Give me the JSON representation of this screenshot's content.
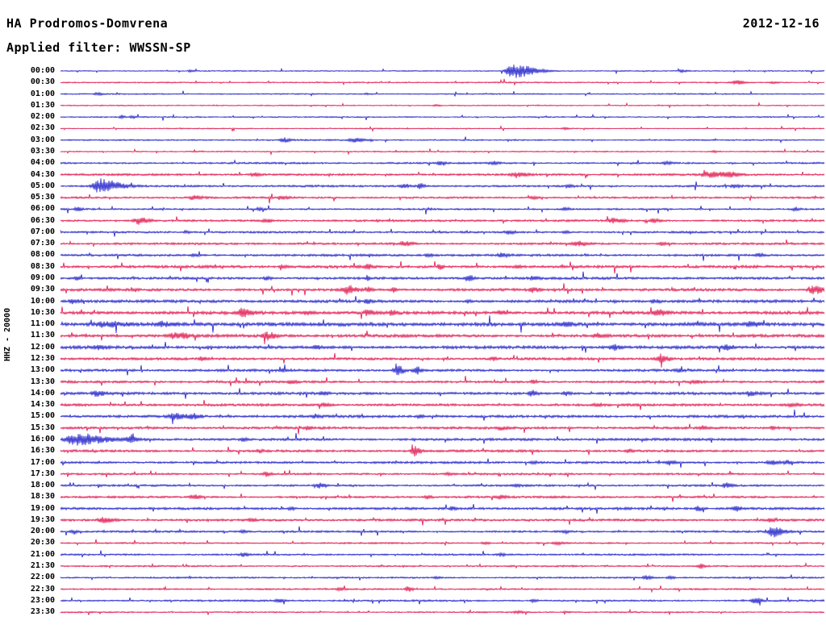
{
  "header": {
    "station": "HA Prodromos-Domvrena",
    "date": "2012-12-16",
    "filter_label": "Applied filter: WWSSN-SP"
  },
  "chart_data": {
    "type": "line",
    "subtype": "helicorder-seismogram-dayplot",
    "title": "HA Prodromos-Domvrena",
    "date": "2012-12-16",
    "filter": "WWSSN-SP",
    "ylabel": "HHZ - 20000",
    "row_interval_minutes": 30,
    "time_range": [
      "00:00",
      "23:30"
    ],
    "grid": false,
    "legend": false,
    "colors": {
      "blue": "#1a1ac9",
      "red": "#e0114a",
      "text": "#000000",
      "background": "#ffffff"
    },
    "events_schema": [
      "x_fraction_of_row",
      "amplitude_px",
      "width_px",
      "tail_factor_optional"
    ],
    "rows": [
      {
        "label": "00:00",
        "color": "blue",
        "noise": 0.6,
        "events": [
          [
            0.591,
            9,
            8,
            4
          ],
          [
            0.813,
            1.5,
            4
          ],
          [
            0.17,
            1.2,
            3
          ]
        ]
      },
      {
        "label": "00:30",
        "color": "red",
        "noise": 0.7,
        "events": [
          [
            0.884,
            2.5,
            5
          ],
          [
            0.932,
            1.5,
            3
          ]
        ]
      },
      {
        "label": "01:00",
        "color": "blue",
        "noise": 0.7,
        "events": [
          [
            0.047,
            2,
            3
          ],
          [
            0.4,
            1,
            3
          ]
        ]
      },
      {
        "label": "01:30",
        "color": "red",
        "noise": 0.6,
        "events": [
          [
            0.491,
            1,
            3
          ]
        ]
      },
      {
        "label": "02:00",
        "color": "blue",
        "noise": 0.7,
        "events": [
          [
            0.079,
            2.2,
            2
          ],
          [
            0.093,
            1.8,
            2
          ]
        ]
      },
      {
        "label": "02:30",
        "color": "red",
        "noise": 0.6,
        "events": [
          [
            0.66,
            1.2,
            3
          ]
        ]
      },
      {
        "label": "03:00",
        "color": "blue",
        "noise": 0.8,
        "events": [
          [
            0.292,
            3,
            4
          ],
          [
            0.383,
            2.5,
            7
          ]
        ]
      },
      {
        "label": "03:30",
        "color": "red",
        "noise": 0.7,
        "events": [
          [
            0.855,
            1.2,
            3
          ]
        ]
      },
      {
        "label": "04:00",
        "color": "blue",
        "noise": 1.0,
        "events": [
          [
            0.496,
            2.2,
            3
          ],
          [
            0.565,
            2,
            4
          ],
          [
            0.792,
            2,
            4
          ]
        ]
      },
      {
        "label": "04:30",
        "color": "red",
        "noise": 1.2,
        "events": [
          [
            0.253,
            2,
            4
          ],
          [
            0.597,
            2.5,
            6
          ],
          [
            0.85,
            3.5,
            10
          ],
          [
            0.876,
            3,
            5
          ]
        ]
      },
      {
        "label": "05:00",
        "color": "blue",
        "noise": 1.1,
        "events": [
          [
            0.05,
            9,
            7,
            4
          ],
          [
            0.449,
            3,
            4
          ],
          [
            0.47,
            3.5,
            3
          ],
          [
            0.665,
            2.2,
            3
          ],
          [
            0.882,
            2,
            4
          ]
        ]
      },
      {
        "label": "05:30",
        "color": "red",
        "noise": 1.1,
        "events": [
          [
            0.174,
            2.8,
            5
          ],
          [
            0.29,
            2,
            4
          ],
          [
            0.618,
            1.8,
            4
          ]
        ]
      },
      {
        "label": "06:00",
        "color": "blue",
        "noise": 1.0,
        "events": [
          [
            0.021,
            2.5,
            3
          ],
          [
            0.259,
            1.8,
            3
          ],
          [
            0.66,
            2,
            3
          ],
          [
            0.961,
            2,
            3
          ]
        ]
      },
      {
        "label": "06:30",
        "color": "red",
        "noise": 1.2,
        "events": [
          [
            0.102,
            4.5,
            6
          ],
          [
            0.269,
            2,
            4
          ],
          [
            0.723,
            3.5,
            6
          ],
          [
            0.776,
            2.5,
            4
          ]
        ]
      },
      {
        "label": "07:00",
        "color": "blue",
        "noise": 1.1,
        "events": [
          [
            0.164,
            1.5,
            3
          ],
          [
            0.586,
            2,
            4
          ],
          [
            0.66,
            1.8,
            3
          ]
        ]
      },
      {
        "label": "07:30",
        "color": "red",
        "noise": 1.2,
        "events": [
          [
            0.449,
            2.8,
            5
          ],
          [
            0.676,
            3,
            6
          ],
          [
            0.787,
            2.2,
            4
          ]
        ]
      },
      {
        "label": "08:00",
        "color": "blue",
        "noise": 1.3,
        "events": [
          [
            0.174,
            2,
            3
          ],
          [
            0.48,
            2,
            3
          ],
          [
            0.576,
            2.2,
            4
          ],
          [
            0.913,
            2,
            3
          ]
        ]
      },
      {
        "label": "08:30",
        "color": "red",
        "noise": 1.5,
        "events": [
          [
            0.29,
            2,
            3
          ],
          [
            0.401,
            5,
            2
          ],
          [
            0.496,
            5,
            2
          ],
          [
            0.597,
            2,
            3
          ]
        ]
      },
      {
        "label": "09:00",
        "color": "blue",
        "noise": 1.4,
        "events": [
          [
            0.021,
            2,
            3
          ],
          [
            0.269,
            2.2,
            3
          ],
          [
            0.401,
            3,
            2
          ],
          [
            0.533,
            3.5,
            4
          ],
          [
            0.618,
            2,
            3
          ]
        ]
      },
      {
        "label": "09:30",
        "color": "red",
        "noise": 1.5,
        "events": [
          [
            0.375,
            5,
            6
          ],
          [
            0.403,
            4,
            2
          ],
          [
            0.435,
            3.5,
            2
          ],
          [
            0.618,
            2.5,
            4
          ],
          [
            0.985,
            5.5,
            6
          ]
        ]
      },
      {
        "label": "10:00",
        "color": "blue",
        "noise": 1.6,
        "events": [
          [
            0.016,
            2.5,
            4
          ],
          [
            0.401,
            2.5,
            3
          ],
          [
            0.533,
            2,
            3
          ],
          [
            0.776,
            2.2,
            4
          ]
        ]
      },
      {
        "label": "10:30",
        "color": "red",
        "noise": 1.8,
        "events": [
          [
            0.238,
            5,
            6
          ],
          [
            0.322,
            2.5,
            4
          ],
          [
            0.401,
            3.5,
            4
          ],
          [
            0.433,
            3,
            3
          ],
          [
            0.576,
            2.5,
            4
          ],
          [
            0.781,
            3,
            6
          ]
        ]
      },
      {
        "label": "11:00",
        "color": "blue",
        "noise": 2.1,
        "events": [
          [
            0.058,
            3,
            10
          ],
          [
            0.132,
            2.5,
            6
          ],
          [
            0.66,
            2.5,
            5
          ],
          [
            0.903,
            2.5,
            5
          ]
        ]
      },
      {
        "label": "11:30",
        "color": "red",
        "noise": 1.7,
        "events": [
          [
            0.148,
            3.5,
            5
          ],
          [
            0.162,
            3,
            3
          ],
          [
            0.269,
            4.5,
            5
          ],
          [
            0.702,
            2.5,
            4
          ]
        ]
      },
      {
        "label": "12:00",
        "color": "blue",
        "noise": 1.7,
        "events": [
          [
            0.047,
            2.5,
            6
          ],
          [
            0.333,
            2.2,
            3
          ],
          [
            0.723,
            3,
            4
          ],
          [
            0.871,
            3.5,
            4
          ]
        ]
      },
      {
        "label": "12:30",
        "color": "red",
        "noise": 1.4,
        "events": [
          [
            0.185,
            2,
            3
          ],
          [
            0.565,
            2,
            3
          ],
          [
            0.785,
            5.5,
            5
          ]
        ]
      },
      {
        "label": "13:00",
        "color": "blue",
        "noise": 1.4,
        "events": [
          [
            0.29,
            2,
            3
          ],
          [
            0.44,
            6.5,
            4
          ],
          [
            0.465,
            5.5,
            3
          ],
          [
            0.808,
            2,
            3
          ]
        ]
      },
      {
        "label": "13:30",
        "color": "red",
        "noise": 1.3,
        "events": [
          [
            0.301,
            2.2,
            3
          ],
          [
            0.618,
            2.2,
            3
          ],
          [
            0.831,
            2,
            3
          ]
        ]
      },
      {
        "label": "14:00",
        "color": "blue",
        "noise": 1.5,
        "events": [
          [
            0.047,
            3,
            5
          ],
          [
            0.343,
            2.2,
            3
          ],
          [
            0.616,
            3.5,
            3
          ],
          [
            0.66,
            2.5,
            3
          ],
          [
            0.903,
            2.8,
            4
          ]
        ]
      },
      {
        "label": "14:30",
        "color": "red",
        "noise": 1.4,
        "events": [
          [
            0.343,
            2.8,
            4
          ],
          [
            0.702,
            2.2,
            3
          ],
          [
            0.956,
            2.8,
            4
          ]
        ]
      },
      {
        "label": "15:00",
        "color": "blue",
        "noise": 1.5,
        "events": [
          [
            0.148,
            4,
            8
          ],
          [
            0.174,
            3.5,
            4
          ],
          [
            0.333,
            2.2,
            3
          ],
          [
            0.47,
            2,
            3
          ]
        ]
      },
      {
        "label": "15:30",
        "color": "red",
        "noise": 1.4,
        "events": [
          [
            0.322,
            2,
            3
          ],
          [
            0.576,
            2,
            3
          ],
          [
            0.839,
            2.2,
            3
          ],
          [
            0.932,
            2,
            3
          ]
        ]
      },
      {
        "label": "16:00",
        "color": "blue",
        "noise": 1.4,
        "events": [
          [
            0.018,
            7,
            10,
            4
          ],
          [
            0.09,
            3,
            5
          ],
          [
            0.238,
            1.8,
            3
          ]
        ]
      },
      {
        "label": "16:30",
        "color": "red",
        "noise": 1.3,
        "events": [
          [
            0.259,
            2,
            3
          ],
          [
            0.463,
            6,
            4
          ],
          [
            0.744,
            2,
            3
          ]
        ]
      },
      {
        "label": "17:00",
        "color": "blue",
        "noise": 1.3,
        "events": [
          [
            0.618,
            2,
            3
          ],
          [
            0.797,
            2.8,
            4
          ],
          [
            0.929,
            3,
            5
          ],
          [
            0.95,
            2.5,
            3
          ]
        ]
      },
      {
        "label": "17:30",
        "color": "red",
        "noise": 1.1,
        "events": [
          [
            0.269,
            3.5,
            3
          ],
          [
            0.507,
            1.5,
            3
          ]
        ]
      },
      {
        "label": "18:00",
        "color": "blue",
        "noise": 1.1,
        "events": [
          [
            0.338,
            3,
            4
          ],
          [
            0.597,
            1.8,
            3
          ],
          [
            0.871,
            3.2,
            4
          ]
        ]
      },
      {
        "label": "18:30",
        "color": "red",
        "noise": 1.2,
        "events": [
          [
            0.174,
            3,
            4
          ],
          [
            0.48,
            2,
            3
          ],
          [
            0.576,
            2,
            3
          ]
        ]
      },
      {
        "label": "19:00",
        "color": "blue",
        "noise": 1.4,
        "events": [
          [
            0.301,
            2.2,
            3
          ],
          [
            0.512,
            2.2,
            3
          ],
          [
            0.834,
            3.2,
            3
          ],
          [
            0.884,
            3.5,
            3
          ]
        ]
      },
      {
        "label": "19:30",
        "color": "red",
        "noise": 1.3,
        "events": [
          [
            0.056,
            3.5,
            6
          ],
          [
            0.248,
            2.2,
            3
          ],
          [
            0.929,
            2.5,
            3
          ]
        ]
      },
      {
        "label": "20:00",
        "color": "blue",
        "noise": 1.1,
        "events": [
          [
            0.016,
            2.2,
            3
          ],
          [
            0.238,
            2,
            3
          ],
          [
            0.66,
            1.8,
            3
          ],
          [
            0.932,
            7,
            5,
            3
          ]
        ]
      },
      {
        "label": "20:30",
        "color": "red",
        "noise": 0.9,
        "events": [
          [
            0.554,
            1.8,
            3
          ],
          [
            0.649,
            1.8,
            3
          ]
        ]
      },
      {
        "label": "21:00",
        "color": "blue",
        "noise": 1.0,
        "events": [
          [
            0.238,
            2.5,
            4
          ],
          [
            0.576,
            1.8,
            3
          ]
        ]
      },
      {
        "label": "21:30",
        "color": "red",
        "noise": 0.9,
        "events": [
          [
            0.837,
            3,
            3
          ]
        ]
      },
      {
        "label": "22:00",
        "color": "blue",
        "noise": 0.9,
        "events": [
          [
            0.491,
            1.5,
            3
          ],
          [
            0.766,
            2.5,
            4
          ],
          [
            0.797,
            2.2,
            3
          ]
        ]
      },
      {
        "label": "22:30",
        "color": "red",
        "noise": 0.9,
        "events": [
          [
            0.364,
            1.8,
            3
          ],
          [
            0.454,
            3.5,
            3
          ]
        ]
      },
      {
        "label": "23:00",
        "color": "blue",
        "noise": 1.0,
        "events": [
          [
            0.285,
            2.2,
            3
          ],
          [
            0.618,
            1.8,
            3
          ],
          [
            0.908,
            4,
            4
          ]
        ]
      },
      {
        "label": "23:30",
        "color": "red",
        "noise": 0.8,
        "events": [
          [
            0.597,
            1.5,
            4
          ],
          [
            0.66,
            1.2,
            3
          ]
        ]
      }
    ]
  }
}
